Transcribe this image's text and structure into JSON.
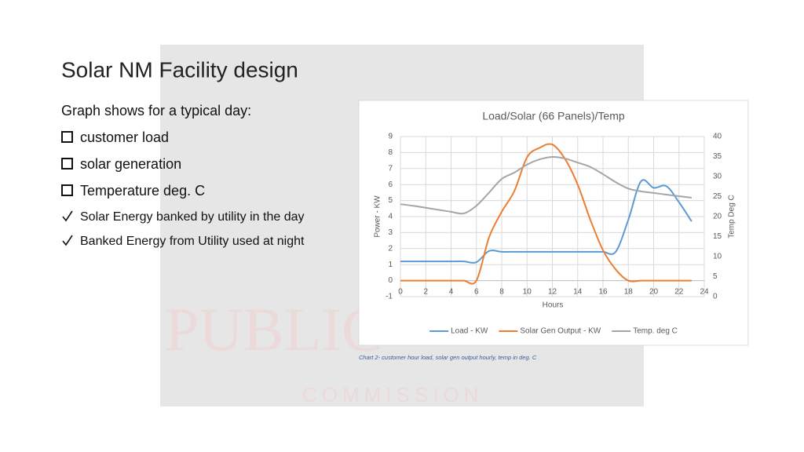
{
  "slide": {
    "title": "Solar NM Facility design",
    "intro": "Graph shows for a typical day:",
    "bullets": [
      "customer load",
      "solar generation",
      "Temperature deg. C",
      "Solar Energy banked by utility in the day",
      "Banked Energy from Utility used at night"
    ],
    "watermark": [
      "PUBLIC",
      "COMMISSION"
    ],
    "caption": "Chart 2- customer hour load, solar gen output hourly, temp in deg. C"
  },
  "chart_data": {
    "type": "line",
    "title": "Load/Solar (66 Panels)/Temp",
    "x_label": "Hours",
    "y_label": "Power - KW",
    "y2_label": "Temp Deg C",
    "x": [
      0,
      1,
      2,
      3,
      4,
      5,
      6,
      7,
      8,
      9,
      10,
      11,
      12,
      13,
      14,
      15,
      16,
      17,
      18,
      19,
      20,
      21,
      22,
      23
    ],
    "xlim": [
      0,
      24
    ],
    "xticks": [
      0,
      2,
      4,
      6,
      8,
      10,
      12,
      14,
      16,
      18,
      20,
      22,
      24
    ],
    "ylim": [
      -1,
      9
    ],
    "yticks": [
      -1,
      0,
      1,
      2,
      3,
      4,
      5,
      6,
      7,
      8,
      9
    ],
    "y2lim": [
      0,
      40
    ],
    "y2ticks": [
      0,
      5,
      10,
      15,
      20,
      25,
      30,
      35,
      40
    ],
    "grid": true,
    "legend": "bottom",
    "series": [
      {
        "name": "Load - KW",
        "color": "#5b9bd5",
        "values": [
          1.2,
          1.2,
          1.2,
          1.2,
          1.2,
          1.2,
          1.15,
          1.85,
          1.8,
          1.8,
          1.8,
          1.8,
          1.8,
          1.8,
          1.8,
          1.8,
          1.8,
          1.8,
          3.8,
          6.2,
          5.8,
          5.9,
          4.9,
          3.7
        ]
      },
      {
        "name": "Solar Gen Output - KW",
        "color": "#ed7d31",
        "values": [
          0,
          0,
          0,
          0,
          0,
          0,
          0,
          2.7,
          4.3,
          5.6,
          7.7,
          8.3,
          8.5,
          7.6,
          6,
          3.8,
          1.9,
          0.7,
          0,
          0,
          0,
          0,
          0,
          0
        ]
      },
      {
        "name": "Temp. deg C",
        "color": "#a5a5a5",
        "axis": "y2",
        "values": [
          23.1,
          22.7,
          22.2,
          21.7,
          21.2,
          20.8,
          22.7,
          26,
          29.4,
          31,
          33,
          34.3,
          34.9,
          34.5,
          33.5,
          32.4,
          30.6,
          28.6,
          27,
          26.3,
          25.9,
          25.5,
          25.1,
          24.7
        ]
      }
    ]
  }
}
